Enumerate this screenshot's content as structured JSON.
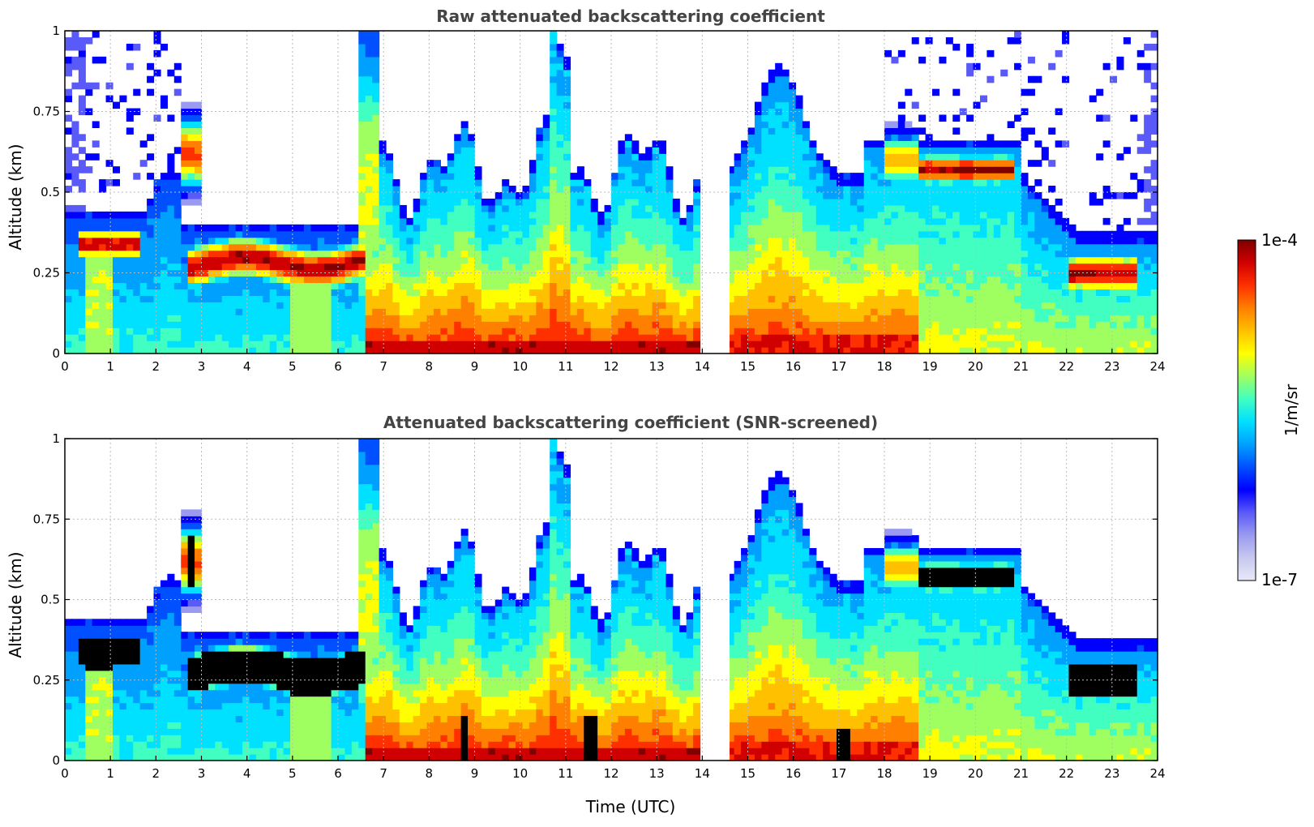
{
  "chart_data": [
    {
      "type": "heatmap",
      "title": "Raw attenuated backscattering coefficient",
      "xlabel": "",
      "ylabel": "Altitude (km)",
      "xlim": [
        0,
        24
      ],
      "ylim": [
        0,
        1
      ],
      "x_ticks": [
        "0",
        "1",
        "2",
        "3",
        "4",
        "5",
        "6",
        "7",
        "8",
        "9",
        "10",
        "11",
        "12",
        "13",
        "14",
        "15",
        "16",
        "17",
        "18",
        "19",
        "20",
        "21",
        "22",
        "23",
        "24"
      ],
      "y_ticks": [
        "0",
        "0.25",
        "0.5",
        "0.75",
        "1"
      ],
      "grid": true,
      "data_gap_hours": [
        14.0,
        14.6
      ],
      "features": [
        {
          "x": [
            0.3,
            1.7
          ],
          "y": [
            0.3,
            0.38
          ],
          "level": "high",
          "note_value": 0.9
        },
        {
          "x": [
            2.7,
            6.6
          ],
          "y": [
            0.21,
            0.35
          ],
          "level": "high",
          "note_value": 0.95
        },
        {
          "x": [
            2.6,
            2.95
          ],
          "y": [
            0.5,
            0.72
          ],
          "level": "high",
          "note_value": 0.8
        },
        {
          "x": [
            6.6,
            14.0
          ],
          "y": [
            0.0,
            0.05
          ],
          "level": "high",
          "note_value": 0.92
        },
        {
          "x": [
            14.6,
            18.8
          ],
          "y": [
            0.0,
            0.06
          ],
          "level": "high",
          "note_value": 0.9
        },
        {
          "x": [
            18.7,
            20.9
          ],
          "y": [
            0.52,
            0.62
          ],
          "level": "high",
          "note_value": 0.95
        },
        {
          "x": [
            22.1,
            23.6
          ],
          "y": [
            0.19,
            0.31
          ],
          "level": "high",
          "note_value": 0.95
        }
      ]
    },
    {
      "type": "heatmap",
      "title": "Attenuated backscattering coefficient (SNR-screened)",
      "xlabel": "Time (UTC)",
      "ylabel": "Altitude (km)",
      "xlim": [
        0,
        24
      ],
      "ylim": [
        0,
        1
      ],
      "x_ticks": [
        "0",
        "1",
        "2",
        "3",
        "4",
        "5",
        "6",
        "7",
        "8",
        "9",
        "10",
        "11",
        "12",
        "13",
        "14",
        "15",
        "16",
        "17",
        "18",
        "19",
        "20",
        "21",
        "22",
        "23",
        "24"
      ],
      "y_ticks": [
        "0",
        "0.25",
        "0.5",
        "0.75",
        "1"
      ],
      "grid": true,
      "data_gap_hours": [
        14.0,
        14.6
      ],
      "masked_regions_color": "#000000",
      "masked_regions": [
        {
          "x": [
            0.35,
            1.7
          ],
          "y": [
            0.29,
            0.4
          ]
        },
        {
          "x": [
            2.6,
            6.6
          ],
          "y": [
            0.2,
            0.33
          ]
        },
        {
          "x": [
            2.65,
            2.9
          ],
          "y": [
            0.55,
            0.7
          ]
        },
        {
          "x": [
            18.7,
            20.9
          ],
          "y": [
            0.5,
            0.62
          ]
        },
        {
          "x": [
            22.1,
            23.6
          ],
          "y": [
            0.18,
            0.31
          ]
        },
        {
          "x": [
            8.75,
            8.85
          ],
          "y": [
            0.0,
            0.13
          ]
        },
        {
          "x": [
            11.4,
            11.7
          ],
          "y": [
            0.0,
            0.14
          ]
        },
        {
          "x": [
            17.0,
            17.3
          ],
          "y": [
            0.0,
            0.1
          ]
        }
      ]
    }
  ],
  "colorbar": {
    "label": "1/m/sr",
    "max_label": "1e-4",
    "min_label": "1e-7",
    "scale": "log",
    "colormap": "jet",
    "colors": [
      "#e8e8f8",
      "#c8c8f0",
      "#9a9af0",
      "#5a5af8",
      "#0000ff",
      "#0050ff",
      "#00a0ff",
      "#00e0ff",
      "#40ffc0",
      "#a0ff60",
      "#ffff00",
      "#ffc000",
      "#ff8000",
      "#ff3000",
      "#d00000",
      "#800000"
    ]
  }
}
